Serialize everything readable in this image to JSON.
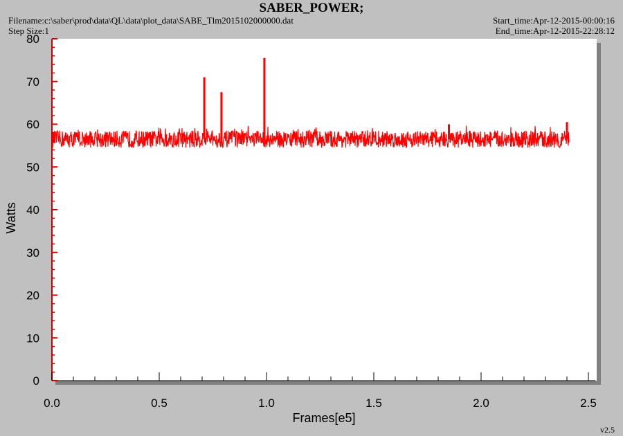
{
  "header": {
    "title": "SABER_POWER;",
    "filename": "Filename:c:\\saber\\prod\\data\\QL\\data\\plot_data\\SABE_Tlm2015102000000.dat",
    "step_size": "Step Size:1",
    "start_time": "Start_time:Apr-12-2015-00:00:16",
    "end_time": "End_time:Apr-12-2015-22:28:12",
    "version": "v2.5"
  },
  "chart_data": {
    "type": "line",
    "title": "SABER_POWER;",
    "xlabel": "Frames[e5]",
    "ylabel": "Watts",
    "xlim": [
      0,
      2.5
    ],
    "ylim": [
      0,
      80
    ],
    "x_ticks": [
      "0.0",
      "0.5",
      "1.0",
      "1.5",
      "2.0",
      "2.5"
    ],
    "y_ticks": [
      "0",
      "10",
      "20",
      "30",
      "40",
      "50",
      "60",
      "70",
      "80"
    ],
    "series": [
      {
        "color": "#ff0000",
        "x_range": [
          0,
          2.41
        ],
        "baseline": 56.5,
        "band": [
          54.5,
          58.5
        ],
        "spikes": [
          {
            "x": 0.71,
            "y": 71
          },
          {
            "x": 0.79,
            "y": 67.5
          },
          {
            "x": 0.99,
            "y": 75.5
          },
          {
            "x": 1.85,
            "y": 60
          },
          {
            "x": 2.4,
            "y": 60.5
          }
        ]
      }
    ],
    "grid": false,
    "legend": "none"
  },
  "colors": {
    "background": "#c0c0c0",
    "plot_area": "#ffffff",
    "axis_red": "#cc0000",
    "series": "#ff0000"
  }
}
